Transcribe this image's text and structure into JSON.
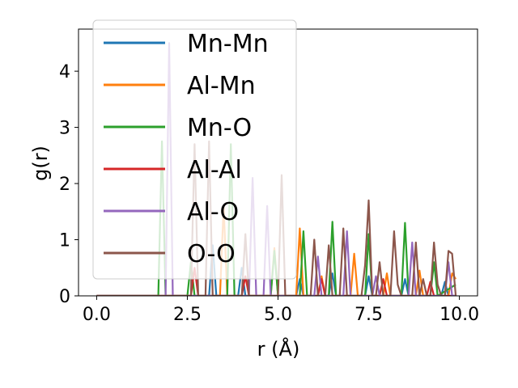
{
  "chart_data": {
    "type": "line",
    "title": "",
    "xlabel": "r (Å)",
    "ylabel": "g(r)",
    "xlim": [
      -0.5,
      10.5
    ],
    "ylim": [
      0,
      4.75
    ],
    "xticks": [
      0.0,
      2.5,
      5.0,
      7.5,
      10.0
    ],
    "xtick_labels": [
      "0.0",
      "2.5",
      "5.0",
      "7.5",
      "10.0"
    ],
    "yticks": [
      0,
      1,
      2,
      3,
      4
    ],
    "ytick_labels": [
      "0",
      "1",
      "2",
      "3",
      "4"
    ],
    "grid": false,
    "legend_position": "upper-left",
    "series": [
      {
        "name": "Mn-Mn",
        "color": "#1f77b4",
        "x": [
          0,
          3.1,
          3.2,
          3.3,
          3.9,
          4.0,
          4.1,
          5.5,
          5.6,
          5.7,
          6.4,
          6.5,
          6.6,
          7.4,
          7.5,
          7.6,
          8.4,
          8.5,
          8.6,
          9.5,
          9.6,
          9.7,
          9.9
        ],
        "y": [
          0,
          0,
          0.9,
          0,
          0,
          0.5,
          0,
          0,
          0.3,
          0,
          0,
          0.4,
          0,
          0,
          0.35,
          0,
          0,
          0.3,
          0,
          0,
          0.25,
          0,
          0
        ]
      },
      {
        "name": "Al-Mn",
        "color": "#ff7f0e",
        "x": [
          0,
          3.4,
          3.5,
          3.6,
          4.8,
          4.9,
          5.0,
          5.5,
          5.6,
          5.7,
          6.1,
          6.2,
          6.3,
          7.0,
          7.1,
          7.2,
          7.9,
          8.0,
          8.1,
          8.8,
          8.9,
          9.0,
          9.7,
          9.8,
          9.9
        ],
        "y": [
          0,
          0,
          1.6,
          0,
          0,
          0.85,
          0,
          0,
          1.2,
          0,
          0,
          0.35,
          0,
          0,
          0.75,
          0,
          0,
          0.4,
          0,
          0,
          0.45,
          0,
          0,
          0.4,
          0.3
        ]
      },
      {
        "name": "Mn-O",
        "color": "#2ca02c",
        "x": [
          0,
          1.7,
          1.8,
          1.9,
          2.5,
          2.6,
          2.7,
          3.6,
          3.7,
          3.8,
          4.8,
          4.9,
          5.0,
          5.6,
          5.7,
          5.8,
          6.4,
          6.5,
          6.6,
          7.4,
          7.5,
          7.6,
          8.4,
          8.5,
          8.6,
          9.2,
          9.3,
          9.4,
          9.9
        ],
        "y": [
          0,
          0,
          2.75,
          0,
          0,
          0.6,
          0,
          0,
          2.7,
          0,
          0,
          0.8,
          0,
          0,
          1.15,
          0,
          0,
          1.32,
          0,
          0,
          1.1,
          0,
          0,
          1.3,
          0,
          0,
          0.6,
          0,
          0.2
        ]
      },
      {
        "name": "Al-Al",
        "color": "#d62728",
        "x": [
          0,
          2.6,
          2.7,
          2.8,
          4.0,
          4.1,
          4.2,
          6.1,
          6.2,
          6.3,
          7.8,
          7.9,
          8.0,
          9.1,
          9.2,
          9.3,
          9.9
        ],
        "y": [
          0,
          0,
          0.5,
          0,
          0,
          0.35,
          0,
          0,
          0.3,
          0,
          0,
          0.3,
          0,
          0,
          0.25,
          0,
          0
        ]
      },
      {
        "name": "Al-O",
        "color": "#9467bd",
        "x": [
          0,
          1.9,
          2.0,
          2.1,
          4.2,
          4.3,
          4.4,
          4.6,
          4.7,
          4.8,
          6.0,
          6.1,
          6.2,
          6.8,
          6.9,
          7.0,
          7.6,
          7.7,
          7.8,
          8.6,
          8.7,
          8.8,
          9.6,
          9.7,
          9.8,
          9.9
        ],
        "y": [
          0,
          0,
          4.5,
          0,
          0,
          2.1,
          0,
          0,
          1.6,
          0,
          0,
          0.7,
          0,
          0,
          1.15,
          0,
          0,
          0.35,
          0,
          0,
          0.95,
          0,
          0,
          0.6,
          0,
          0
        ]
      },
      {
        "name": "O-O",
        "color": "#8c564b",
        "x": [
          0,
          2.6,
          2.7,
          2.8,
          3.0,
          3.1,
          3.2,
          4.0,
          4.1,
          4.2,
          5.0,
          5.1,
          5.2,
          5.9,
          6.0,
          6.1,
          6.3,
          6.4,
          6.5,
          6.7,
          6.8,
          6.9,
          7.3,
          7.4,
          7.5,
          7.6,
          7.7,
          7.8,
          7.9,
          8.0,
          8.1,
          8.2,
          8.3,
          8.4,
          8.7,
          8.8,
          8.9,
          9.0,
          9.1,
          9.2,
          9.3,
          9.4,
          9.5,
          9.6,
          9.7,
          9.8,
          9.9
        ],
        "y": [
          0,
          0,
          2.7,
          0,
          0,
          2.75,
          0,
          0,
          1.1,
          0,
          0,
          2.15,
          0,
          0,
          1.0,
          0,
          0,
          0.9,
          0,
          0,
          1.2,
          0,
          0,
          0.55,
          1.7,
          0,
          0,
          0.6,
          0,
          0,
          0,
          1.15,
          0.2,
          0,
          0,
          0.95,
          0,
          0.3,
          0,
          0,
          0.95,
          0.2,
          0,
          0,
          0.8,
          0.75,
          0
        ]
      }
    ]
  }
}
